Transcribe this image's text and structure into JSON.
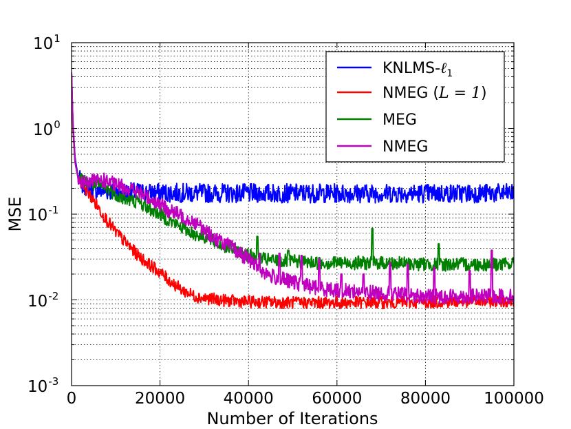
{
  "chart_data": {
    "type": "line",
    "title": "",
    "xlabel": "Number of Iterations",
    "ylabel": "MSE",
    "xscale": "linear",
    "yscale": "log",
    "xlim": [
      0,
      100000
    ],
    "ylim": [
      0.001,
      10
    ],
    "grid": true,
    "legend_position": "top-right",
    "x_ticks": [
      0,
      20000,
      40000,
      60000,
      80000,
      100000
    ],
    "x_tick_labels": [
      "0",
      "20000",
      "40000",
      "60000",
      "80000",
      "100000"
    ],
    "y_ticks": [
      {
        "base": "10",
        "exp": "-3",
        "value": 0.001
      },
      {
        "base": "10",
        "exp": "-2",
        "value": 0.01
      },
      {
        "base": "10",
        "exp": "-1",
        "value": 0.1
      },
      {
        "base": "10",
        "exp": "0",
        "value": 1
      },
      {
        "base": "10",
        "exp": "1",
        "value": 10
      }
    ],
    "series": [
      {
        "name": "KNLMS-",
        "name_math": "ℓ",
        "name_sub": "1",
        "color": "#0000ff",
        "noise": 0.14,
        "x": [
          0,
          300,
          800,
          1500,
          2500,
          4000,
          6000,
          10000,
          15000,
          20000,
          30000,
          40000,
          50000,
          60000,
          70000,
          80000,
          90000,
          100000
        ],
        "values": [
          4.5,
          1.2,
          0.45,
          0.27,
          0.22,
          0.2,
          0.19,
          0.185,
          0.18,
          0.178,
          0.176,
          0.175,
          0.175,
          0.175,
          0.175,
          0.175,
          0.175,
          0.175
        ]
      },
      {
        "name": "NMEG (",
        "name_math": "L = 1",
        "name_tail": ")",
        "color": "#ff0000",
        "noise": 0.09,
        "x": [
          0,
          300,
          800,
          1500,
          2500,
          4000,
          6000,
          8000,
          10000,
          12000,
          15000,
          18000,
          20000,
          22000,
          25000,
          28000,
          30000,
          35000,
          40000,
          50000,
          60000,
          70000,
          80000,
          90000,
          100000
        ],
        "values": [
          4.5,
          1.0,
          0.4,
          0.26,
          0.22,
          0.17,
          0.12,
          0.085,
          0.062,
          0.048,
          0.033,
          0.025,
          0.021,
          0.017,
          0.013,
          0.011,
          0.0105,
          0.0098,
          0.0095,
          0.0093,
          0.0093,
          0.0093,
          0.0094,
          0.0096,
          0.0098
        ]
      },
      {
        "name": "MEG",
        "color": "#008000",
        "noise": 0.1,
        "x": [
          0,
          300,
          800,
          1500,
          3000,
          5000,
          8000,
          10000,
          12000,
          15000,
          17000,
          20000,
          22000,
          25000,
          28000,
          30000,
          33000,
          35000,
          38000,
          40000,
          43000,
          45000,
          50000,
          55000,
          60000,
          70000,
          80000,
          90000,
          100000
        ],
        "values": [
          4.5,
          1.1,
          0.4,
          0.26,
          0.24,
          0.22,
          0.2,
          0.17,
          0.15,
          0.14,
          0.12,
          0.1,
          0.085,
          0.07,
          0.058,
          0.055,
          0.045,
          0.042,
          0.036,
          0.033,
          0.03,
          0.029,
          0.028,
          0.027,
          0.027,
          0.027,
          0.026,
          0.026,
          0.026
        ]
      },
      {
        "name": "NMEG",
        "color": "#bf00bf",
        "noise": 0.11,
        "x": [
          0,
          300,
          800,
          1500,
          3000,
          5000,
          7000,
          10000,
          13000,
          15000,
          18000,
          20000,
          22000,
          25000,
          28000,
          30000,
          33000,
          35000,
          38000,
          40000,
          43000,
          45000,
          50000,
          55000,
          60000,
          70000,
          80000,
          90000,
          100000
        ],
        "values": [
          4.5,
          1.2,
          0.4,
          0.26,
          0.23,
          0.24,
          0.25,
          0.22,
          0.2,
          0.18,
          0.15,
          0.13,
          0.11,
          0.095,
          0.08,
          0.065,
          0.05,
          0.045,
          0.035,
          0.03,
          0.022,
          0.019,
          0.016,
          0.014,
          0.013,
          0.012,
          0.011,
          0.011,
          0.011
        ]
      }
    ],
    "spikes": [
      {
        "series": 2,
        "x": 42000,
        "y": 0.055
      },
      {
        "series": 2,
        "x": 68000,
        "y": 0.068
      },
      {
        "series": 2,
        "x": 83000,
        "y": 0.045
      },
      {
        "series": 2,
        "x": 49000,
        "y": 0.038
      },
      {
        "series": 3,
        "x": 42500,
        "y": 0.035
      },
      {
        "series": 3,
        "x": 47000,
        "y": 0.035
      },
      {
        "series": 3,
        "x": 52000,
        "y": 0.033
      },
      {
        "series": 3,
        "x": 56000,
        "y": 0.03
      },
      {
        "series": 3,
        "x": 61000,
        "y": 0.02
      },
      {
        "series": 3,
        "x": 66000,
        "y": 0.02
      },
      {
        "series": 3,
        "x": 72000,
        "y": 0.027
      },
      {
        "series": 3,
        "x": 76000,
        "y": 0.026
      },
      {
        "series": 3,
        "x": 82000,
        "y": 0.024
      },
      {
        "series": 3,
        "x": 90000,
        "y": 0.022
      },
      {
        "series": 3,
        "x": 95000,
        "y": 0.038
      }
    ]
  }
}
